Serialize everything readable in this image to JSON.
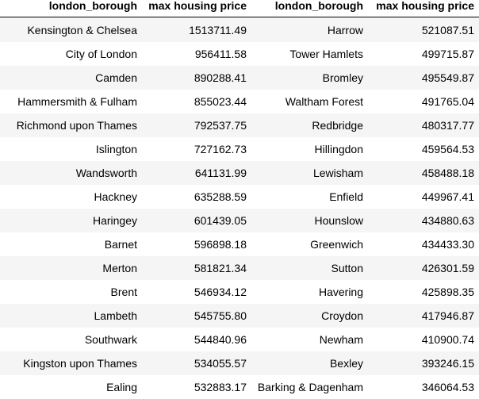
{
  "table": {
    "headers": [
      "london_borough",
      "max housing price",
      "london_borough",
      "max housing price"
    ],
    "rows": [
      [
        "Kensington & Chelsea",
        "1513711.49",
        "Harrow",
        "521087.51"
      ],
      [
        "City of London",
        "956411.58",
        "Tower Hamlets",
        "499715.87"
      ],
      [
        "Camden",
        "890288.41",
        "Bromley",
        "495549.87"
      ],
      [
        "Hammersmith & Fulham",
        "855023.44",
        "Waltham Forest",
        "491765.04"
      ],
      [
        "Richmond upon Thames",
        "792537.75",
        "Redbridge",
        "480317.77"
      ],
      [
        "Islington",
        "727162.73",
        "Hillingdon",
        "459564.53"
      ],
      [
        "Wandsworth",
        "641131.99",
        "Lewisham",
        "458488.18"
      ],
      [
        "Hackney",
        "635288.59",
        "Enfield",
        "449967.41"
      ],
      [
        "Haringey",
        "601439.05",
        "Hounslow",
        "434880.63"
      ],
      [
        "Barnet",
        "596898.18",
        "Greenwich",
        "434433.30"
      ],
      [
        "Merton",
        "581821.34",
        "Sutton",
        "426301.59"
      ],
      [
        "Brent",
        "546934.12",
        "Havering",
        "425898.35"
      ],
      [
        "Lambeth",
        "545755.80",
        "Croydon",
        "417946.87"
      ],
      [
        "Southwark",
        "544840.96",
        "Newham",
        "410900.74"
      ],
      [
        "Kingston upon Thames",
        "534055.57",
        "Bexley",
        "393246.15"
      ],
      [
        "Ealing",
        "532883.17",
        "Barking & Dagenham",
        "346064.53"
      ]
    ]
  }
}
